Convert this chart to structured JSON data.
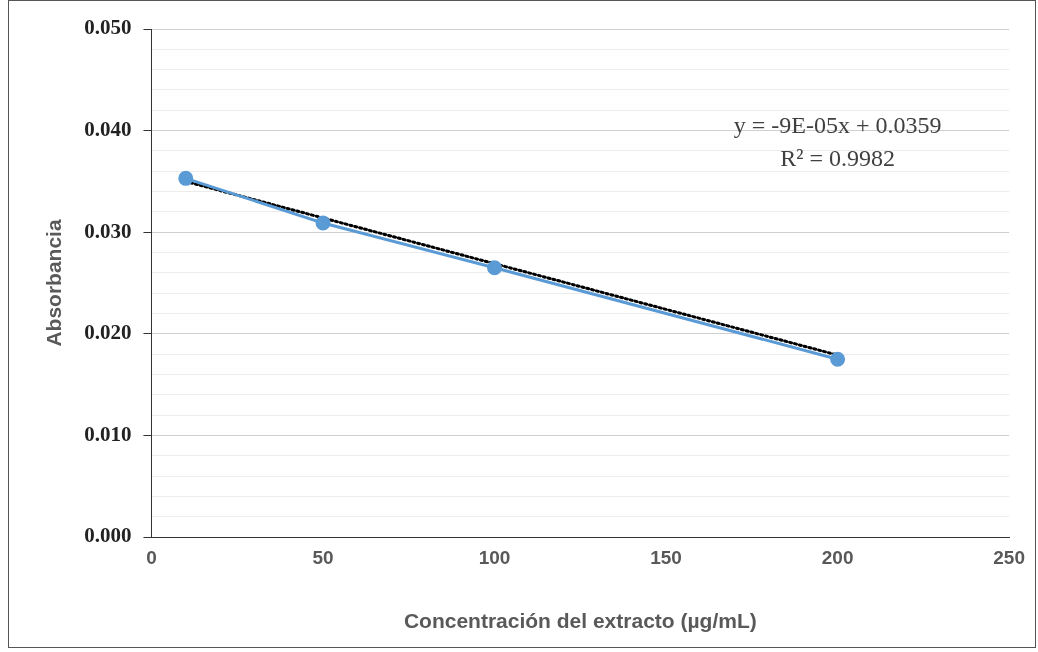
{
  "chart_data": {
    "type": "scatter",
    "xlabel": "Concentración del extracto (µg/mL)",
    "ylabel": "Absorbancia",
    "series": [
      {
        "type": "line",
        "color": "#5b9bd5",
        "marker": "circle",
        "line_style": "solid",
        "x": [
          10,
          50,
          100,
          200
        ],
        "values": [
          0.0353,
          0.0309,
          0.0265,
          0.0175
        ]
      },
      {
        "type": "line",
        "color": "#000000",
        "marker": "none",
        "line_style": "dotted",
        "x": [
          10,
          200
        ],
        "values": [
          0.035,
          0.0179
        ]
      }
    ],
    "xlim": [
      0,
      250
    ],
    "xticks": [
      0,
      50,
      100,
      150,
      200,
      250
    ],
    "ylim": [
      0,
      0.05
    ],
    "yticks": [
      {
        "value": 0,
        "label": "0.000"
      },
      {
        "value": 0.002,
        "label": null
      },
      {
        "value": 0.004,
        "label": null
      },
      {
        "value": 0.006,
        "label": null
      },
      {
        "value": 0.008,
        "label": null
      },
      {
        "value": 0.01,
        "label": "0.010"
      },
      {
        "value": 0.012,
        "label": null
      },
      {
        "value": 0.014,
        "label": null
      },
      {
        "value": 0.016,
        "label": null
      },
      {
        "value": 0.018,
        "label": null
      },
      {
        "value": 0.02,
        "label": "0.020"
      },
      {
        "value": 0.022,
        "label": null
      },
      {
        "value": 0.024,
        "label": null
      },
      {
        "value": 0.026,
        "label": null
      },
      {
        "value": 0.028,
        "label": null
      },
      {
        "value": 0.03,
        "label": "0.030"
      },
      {
        "value": 0.032,
        "label": null
      },
      {
        "value": 0.034,
        "label": null
      },
      {
        "value": 0.036,
        "label": null
      },
      {
        "value": 0.038,
        "label": null
      },
      {
        "value": 0.04,
        "label": "0.040"
      },
      {
        "value": 0.042,
        "label": null
      },
      {
        "value": 0.044,
        "label": null
      },
      {
        "value": 0.046,
        "label": null
      },
      {
        "value": 0.048,
        "label": null
      },
      {
        "value": 0.05,
        "label": "0.050"
      }
    ],
    "grid": "y",
    "annotations": [
      "y = -9E-05x + 0.0359",
      "R² = 0.9982"
    ]
  }
}
